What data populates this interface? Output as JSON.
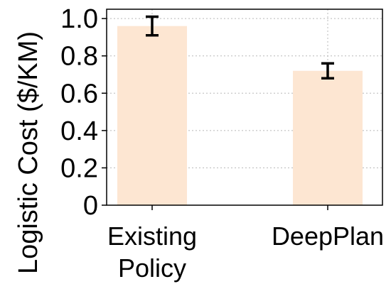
{
  "chart_data": {
    "type": "bar",
    "title": "",
    "xlabel": "",
    "ylabel": "Logistic Cost ($/KM)",
    "categories": [
      [
        "Existing",
        "Policy"
      ],
      [
        "DeepPlan"
      ]
    ],
    "values": [
      0.96,
      0.72
    ],
    "error": [
      0.05,
      0.04
    ],
    "ylim": [
      0,
      1.05
    ],
    "yticks": [
      0,
      0.2,
      0.4,
      0.6,
      0.8,
      1.0
    ],
    "ytick_labels": [
      "0",
      "0.2",
      "0.4",
      "0.6",
      "0.8",
      "1.0"
    ],
    "grid": true,
    "bar_color": "#fde6d2",
    "error_color": "#000000"
  }
}
